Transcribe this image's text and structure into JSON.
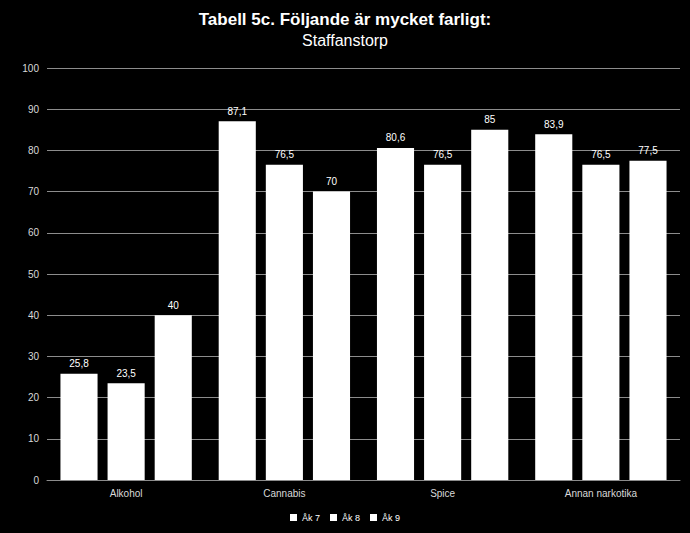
{
  "chart_data": {
    "type": "bar",
    "title": "Tabell 5c. Följande är mycket farligt:",
    "subtitle": "Staffanstorp",
    "categories": [
      "Alkohol",
      "Cannabis",
      "Spice",
      "Annan narkotika"
    ],
    "series": [
      {
        "name": "Åk 7",
        "color": "#ffffff",
        "values": [
          25.8,
          87.1,
          80.6,
          83.9
        ],
        "value_labels": [
          "25,8",
          "87,1",
          "80,6",
          "83,9"
        ]
      },
      {
        "name": "Åk 8",
        "color": "#ffffff",
        "values": [
          23.5,
          76.5,
          76.5,
          76.5
        ],
        "value_labels": [
          "23,5",
          "76,5",
          "76,5",
          "76,5"
        ]
      },
      {
        "name": "Åk 9",
        "color": "#ffffff",
        "values": [
          40,
          70,
          85,
          77.5
        ],
        "value_labels": [
          "40",
          "70",
          "85",
          "77,5"
        ]
      }
    ],
    "ylim": [
      0,
      100
    ],
    "yticks": [
      0,
      10,
      20,
      30,
      40,
      50,
      60,
      70,
      80,
      90,
      100
    ],
    "grid": true,
    "legend": "bottom",
    "data_labels": true
  }
}
